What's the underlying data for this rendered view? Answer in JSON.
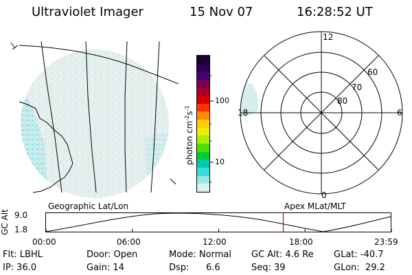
{
  "header": {
    "title": "Ultraviolet Imager",
    "date": "15 Nov 07",
    "time": "16:28:52 UT"
  },
  "colorbar": {
    "unit_label": "photon cm",
    "unit_sup1": "-2",
    "unit_mid": "s",
    "unit_sup2": "-1",
    "tick_100": "100",
    "tick_10": "10",
    "colors": [
      "#1a0033",
      "#2a004f",
      "#4b0070",
      "#7a0050",
      "#a8002a",
      "#d40000",
      "#ff3300",
      "#ff8800",
      "#ffcc00",
      "#eeee00",
      "#aaee00",
      "#55dd00",
      "#00cc33",
      "#00ccaa",
      "#33dddd",
      "#99e8e8",
      "#d8f0f0"
    ]
  },
  "polar": {
    "label_12": "12",
    "label_6": "6",
    "label_18": "18",
    "label_0": "0",
    "lat_60": "60",
    "lat_70": "70",
    "lat_80": "80"
  },
  "orbit": {
    "left_title": "Geographic Lat/Lon",
    "right_title": "Apex MLat/MLT",
    "y_axis": "GC Alt",
    "y_top": "9.0",
    "y_bottom": "1.8",
    "x_ticks": [
      "00:00",
      "06:00",
      "12:00",
      "18:00",
      "23:59"
    ],
    "current_fraction": 0.687,
    "marker_color": "#cc0000"
  },
  "status": {
    "flt": "Flt: LBHL",
    "ip": "IP: 36.0",
    "door": "Door: Open",
    "gain": "Gain: 14",
    "mode": "Mode: Normal",
    "dsp": "Dsp:",
    "dsp_val": "6.6",
    "gcalt": "GC Alt: 4.6 Re",
    "seq": "Seq: 39",
    "glat": "GLat: -40.7",
    "glon": "GLon:  29.2"
  }
}
